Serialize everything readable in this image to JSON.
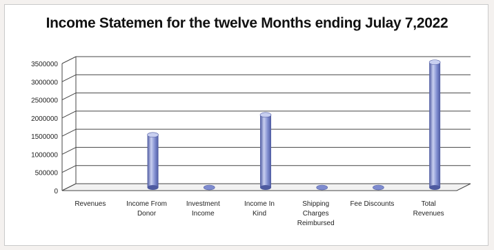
{
  "chart_data": {
    "type": "bar",
    "title": "Income Statemen for the twelve Months ending Julay 7,2022",
    "xlabel": "",
    "ylabel": "",
    "ylim": [
      0,
      3500000
    ],
    "yticks": [
      0,
      500000,
      1000000,
      1500000,
      2000000,
      2500000,
      3000000,
      3500000
    ],
    "grid": true,
    "style": "3d-cylinder",
    "categories": [
      [
        "Revenues"
      ],
      [
        "Income From",
        "Donor"
      ],
      [
        "Investment",
        "Income"
      ],
      [
        "Income In",
        "Kind"
      ],
      [
        "Shipping",
        "Charges",
        "Reimbursed"
      ],
      [
        "Fee Discounts"
      ],
      [
        "Total",
        "Revenues"
      ]
    ],
    "values": [
      0,
      1450000,
      10000,
      2000000,
      10000,
      10000,
      3450000
    ],
    "colors": {
      "bar": "#7e8bcf",
      "bar_light": "#c8cff0",
      "bar_dark": "#4e5aa0",
      "grid": "#444444"
    }
  }
}
